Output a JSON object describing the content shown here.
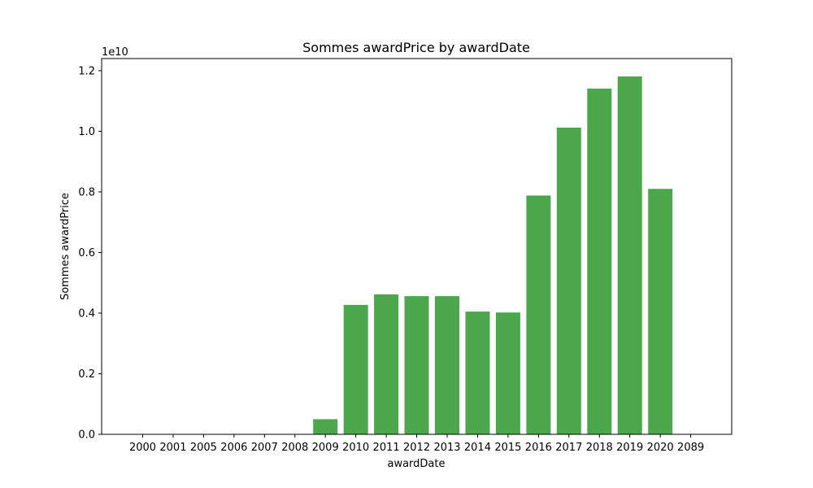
{
  "chart_data": {
    "type": "bar",
    "title": "Sommes awardPrice by awardDate",
    "xlabel": "awardDate",
    "ylabel": "Sommes awardPrice",
    "y_scale_label": "1e10",
    "categories": [
      "2000",
      "2001",
      "2005",
      "2006",
      "2007",
      "2008",
      "2009",
      "2010",
      "2011",
      "2012",
      "2013",
      "2014",
      "2015",
      "2016",
      "2017",
      "2018",
      "2019",
      "2020",
      "2089"
    ],
    "values": [
      0,
      0,
      0,
      0,
      0,
      0,
      500000000.0,
      4270000000.0,
      4620000000.0,
      4560000000.0,
      4560000000.0,
      4050000000.0,
      4020000000.0,
      7880000000.0,
      10120000000.0,
      11410000000.0,
      11810000000.0,
      8100000000.0,
      0
    ],
    "ylim": [
      0,
      12400000000.0
    ],
    "y_ticks": [
      0,
      2000000000.0,
      4000000000.0,
      6000000000.0,
      8000000000.0,
      10000000000.0,
      12000000000.0
    ],
    "y_tick_labels": [
      "0.0",
      "0.2",
      "0.4",
      "0.6",
      "0.8",
      "1.0",
      "1.2"
    ],
    "bar_color": "#4ca64c",
    "grid": false,
    "legend": "none"
  }
}
